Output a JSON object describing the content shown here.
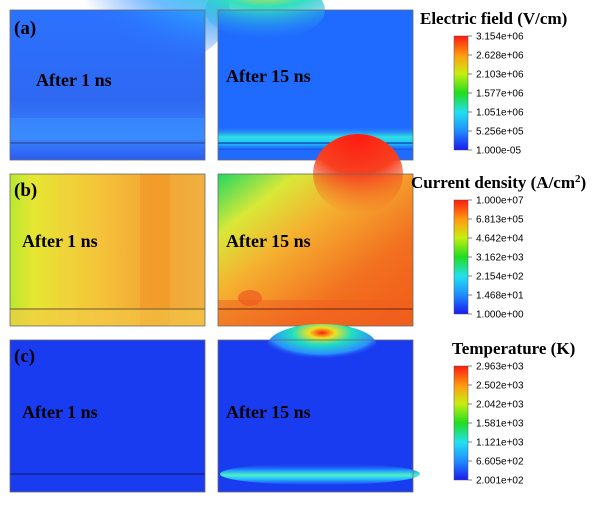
{
  "chart_data": [
    {
      "type": "heatmap",
      "panel_label": "(a)",
      "left_time": "After 1 ns",
      "right_time": "After 15 ns",
      "colorbar": {
        "title": "Electric field (V/cm)",
        "ticks": [
          "3.154e+06",
          "2.628e+06",
          "2.103e+06",
          "1.577e+06",
          "1.051e+06",
          "5.256e+05",
          "1.000e-05"
        ],
        "range": [
          1e-05,
          3154000
        ],
        "scale": "linear"
      }
    },
    {
      "type": "heatmap",
      "panel_label": "(b)",
      "left_time": "After 1 ns",
      "right_time": "After 15 ns",
      "colorbar": {
        "title": "Current density (A/cm",
        "title_sup": "2",
        "title_end": ")",
        "ticks": [
          "1.000e+07",
          "6.813e+05",
          "4.642e+04",
          "3.162e+03",
          "2.154e+02",
          "1.468e+01",
          "1.000e+00"
        ],
        "range": [
          1,
          10000000
        ],
        "scale": "log"
      }
    },
    {
      "type": "heatmap",
      "panel_label": "(c)",
      "left_time": "After 1 ns",
      "right_time": "After 15 ns",
      "colorbar": {
        "title": "Temperature (K)",
        "ticks": [
          "2.963e+03",
          "2.502e+03",
          "2.042e+03",
          "1.581e+03",
          "1.121e+03",
          "6.605e+02",
          "2.001e+02"
        ],
        "range": [
          200.1,
          2963
        ],
        "scale": "linear"
      }
    }
  ]
}
